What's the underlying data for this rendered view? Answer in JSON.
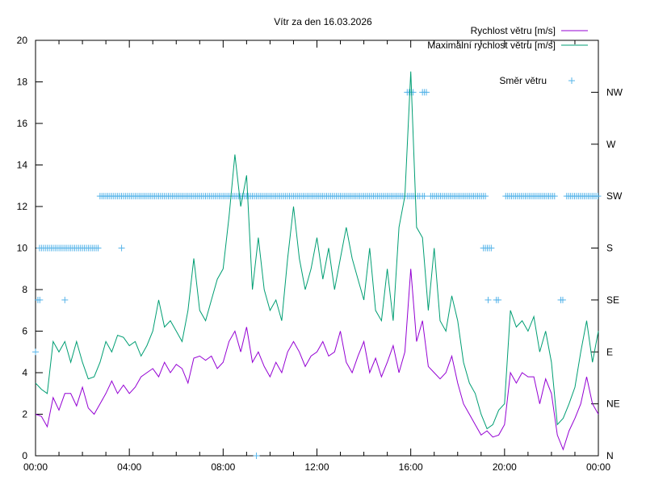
{
  "chart_data": {
    "type": "line",
    "title": "Vítr za den 16.03.2026",
    "xlabel": "",
    "ylabel": "",
    "xlim_hours": [
      0,
      24
    ],
    "ylim": [
      0,
      20
    ],
    "x_ticks": [
      {
        "h": 0,
        "label": "00:00"
      },
      {
        "h": 4,
        "label": "04:00"
      },
      {
        "h": 8,
        "label": "08:00"
      },
      {
        "h": 12,
        "label": "12:00"
      },
      {
        "h": 16,
        "label": "16:00"
      },
      {
        "h": 20,
        "label": "20:00"
      },
      {
        "h": 24,
        "label": "00:00"
      }
    ],
    "y_ticks": [
      0,
      2,
      4,
      6,
      8,
      10,
      12,
      14,
      16,
      18,
      20
    ],
    "y_tick_labels": [
      "0",
      "2",
      "4",
      "6",
      "8",
      "10",
      "12",
      "14",
      "16",
      "18",
      "20"
    ],
    "y2_ticks": [
      {
        "v": 0,
        "label": "N"
      },
      {
        "v": 2.5,
        "label": "NE"
      },
      {
        "v": 5,
        "label": "E"
      },
      {
        "v": 7.5,
        "label": "SE"
      },
      {
        "v": 10,
        "label": "S"
      },
      {
        "v": 12.5,
        "label": "SW"
      },
      {
        "v": 15,
        "label": "W"
      },
      {
        "v": 17.5,
        "label": "NW"
      }
    ],
    "legend_position": "top-right",
    "sample_interval_hours": 0.25,
    "series": [
      {
        "name": "Rychlost větru [m/s]",
        "color": "#9400d3",
        "style": "line",
        "values": [
          2.0,
          1.9,
          1.4,
          2.8,
          2.2,
          3.0,
          3.0,
          2.4,
          3.3,
          2.3,
          2.0,
          2.5,
          3.0,
          3.6,
          3.0,
          3.4,
          3.0,
          3.3,
          3.8,
          4.0,
          4.2,
          3.8,
          4.5,
          4.0,
          4.4,
          4.2,
          3.5,
          4.7,
          4.8,
          4.6,
          4.8,
          4.2,
          4.5,
          5.5,
          6.0,
          5.0,
          6.2,
          4.5,
          5.0,
          4.3,
          3.8,
          4.5,
          4.0,
          5.0,
          5.5,
          5.0,
          4.3,
          4.8,
          5.0,
          5.5,
          4.8,
          5.0,
          6.0,
          4.5,
          4.0,
          4.8,
          5.5,
          4.0,
          4.7,
          3.8,
          4.5,
          5.3,
          4.0,
          5.0,
          9.0,
          5.5,
          6.5,
          4.3,
          4.0,
          3.7,
          4.0,
          4.8,
          3.5,
          2.5,
          2.0,
          1.5,
          1.0,
          1.2,
          0.9,
          1.0,
          1.5,
          4.0,
          3.5,
          4.0,
          3.8,
          3.8,
          2.5,
          3.7,
          3.0,
          1.0,
          0.3,
          1.2,
          1.8,
          2.5,
          3.8,
          2.5,
          2.0
        ]
      },
      {
        "name": "Maximální rychlost větru [m/s]",
        "color": "#009e73",
        "style": "line",
        "values": [
          3.5,
          3.2,
          3.0,
          5.5,
          5.0,
          5.5,
          4.5,
          5.5,
          4.5,
          3.7,
          3.8,
          4.5,
          5.5,
          5.0,
          5.8,
          5.7,
          5.3,
          5.5,
          4.8,
          5.3,
          6.0,
          7.5,
          6.2,
          6.5,
          6.0,
          5.5,
          7.0,
          9.5,
          7.0,
          6.5,
          7.5,
          8.5,
          9.0,
          11.5,
          14.5,
          12.0,
          13.5,
          8.0,
          10.5,
          8.0,
          7.0,
          7.5,
          6.5,
          9.5,
          12.0,
          9.5,
          8.0,
          9.0,
          10.5,
          8.5,
          10.0,
          8.0,
          9.5,
          11.0,
          9.5,
          8.5,
          7.5,
          10.0,
          7.0,
          6.5,
          9.0,
          6.5,
          11.0,
          12.5,
          18.5,
          11.0,
          10.5,
          7.0,
          10.0,
          6.5,
          6.0,
          7.7,
          6.5,
          4.5,
          3.5,
          3.0,
          2.0,
          1.3,
          1.5,
          2.2,
          2.5,
          7.0,
          6.2,
          6.5,
          6.0,
          6.7,
          5.0,
          6.0,
          4.5,
          1.5,
          1.8,
          2.5,
          3.3,
          5.0,
          6.5,
          4.5,
          6.0
        ]
      },
      {
        "name": "Směr větru",
        "color": "#56b4e9",
        "style": "points",
        "step_hours": 0.0833,
        "runs": [
          [
            0,
            0,
            5
          ],
          [
            0.1,
            0.25,
            7.5
          ],
          [
            1.25,
            1.25,
            7.5
          ],
          [
            0.17,
            2.75,
            10
          ],
          [
            3.67,
            3.67,
            10
          ],
          [
            2.75,
            15.75,
            12.5
          ],
          [
            15.85,
            16.2,
            12.5
          ],
          [
            16.3,
            16.4,
            12.5
          ],
          [
            16.5,
            16.65,
            12.5
          ],
          [
            16.85,
            19.25,
            12.5
          ],
          [
            20.05,
            22.15,
            12.5
          ],
          [
            22.65,
            24,
            12.5
          ],
          [
            15.85,
            16.15,
            17.5
          ],
          [
            16.5,
            16.7,
            17.5
          ],
          [
            19.1,
            19.45,
            10
          ],
          [
            19.3,
            19.3,
            7.5
          ],
          [
            19.65,
            19.75,
            7.5
          ],
          [
            22.4,
            22.5,
            7.5
          ],
          [
            9.42,
            9.42,
            0
          ]
        ]
      }
    ]
  }
}
